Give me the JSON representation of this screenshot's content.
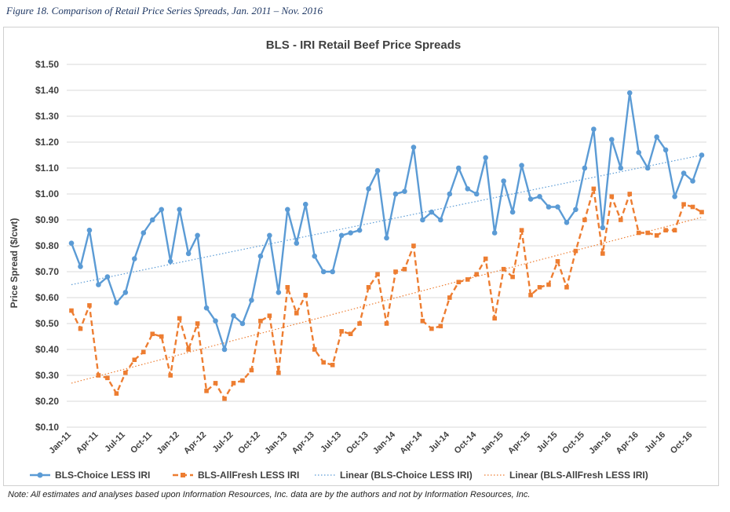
{
  "figure_caption": "Figure 18. Comparison of Retail Price Series Spreads, Jan. 2011 – Nov. 2016",
  "note": "Note: All estimates and analyses based upon Information Resources, Inc. data are by the authors and not by Information Resources, Inc.",
  "chart_data": {
    "type": "line",
    "title": "BLS - IRI Retail Beef Price Spreads",
    "xlabel": "",
    "ylabel": "Price Spread ($/cwt)",
    "ylim": [
      0.1,
      1.5
    ],
    "y_tick_labels": [
      "$0.10",
      "$0.20",
      "$0.30",
      "$0.40",
      "$0.50",
      "$0.60",
      "$0.70",
      "$0.80",
      "$0.90",
      "$1.00",
      "$1.10",
      "$1.20",
      "$1.30",
      "$1.40",
      "$1.50"
    ],
    "x_tick_labels": [
      "Jan-11",
      "Apr-11",
      "Jul-11",
      "Oct-11",
      "Jan-12",
      "Apr-12",
      "Jul-12",
      "Oct-12",
      "Jan-13",
      "Apr-13",
      "Jul-13",
      "Oct-13",
      "Jan-14",
      "Apr-14",
      "Jul-14",
      "Oct-14",
      "Jan-15",
      "Apr-15",
      "Jul-15",
      "Oct-15",
      "Jan-16",
      "Apr-16",
      "Jul-16",
      "Oct-16"
    ],
    "grid": "horizontal",
    "legend_position": "bottom",
    "series": [
      {
        "name": "BLS-Choice LESS IRI",
        "color": "#5b9bd5",
        "values": [
          0.81,
          0.72,
          0.86,
          0.65,
          0.68,
          0.58,
          0.62,
          0.75,
          0.85,
          0.9,
          0.94,
          0.74,
          0.94,
          0.77,
          0.84,
          0.56,
          0.51,
          0.4,
          0.53,
          0.5,
          0.59,
          0.76,
          0.84,
          0.62,
          0.94,
          0.81,
          0.96,
          0.76,
          0.7,
          0.7,
          0.84,
          0.85,
          0.86,
          1.02,
          1.09,
          0.83,
          1.0,
          1.01,
          1.18,
          0.9,
          0.93,
          0.9,
          1.0,
          1.1,
          1.02,
          1.0,
          1.14,
          0.85,
          1.05,
          0.93,
          1.11,
          0.98,
          0.99,
          0.95,
          0.95,
          0.89,
          0.94,
          1.1,
          1.25,
          0.87,
          1.21,
          1.1,
          1.39,
          1.16,
          1.1,
          1.22,
          1.17,
          0.99,
          1.08,
          1.05,
          1.15
        ]
      },
      {
        "name": "BLS-AllFresh LESS IRI",
        "color": "#ed7d31",
        "values": [
          0.55,
          0.48,
          0.57,
          0.3,
          0.29,
          0.23,
          0.31,
          0.36,
          0.39,
          0.46,
          0.45,
          0.3,
          0.52,
          0.4,
          0.5,
          0.24,
          0.27,
          0.21,
          0.27,
          0.28,
          0.32,
          0.51,
          0.53,
          0.31,
          0.64,
          0.54,
          0.61,
          0.4,
          0.35,
          0.34,
          0.47,
          0.46,
          0.5,
          0.64,
          0.69,
          0.5,
          0.7,
          0.71,
          0.8,
          0.51,
          0.48,
          0.49,
          0.6,
          0.66,
          0.67,
          0.69,
          0.75,
          0.52,
          0.71,
          0.68,
          0.86,
          0.61,
          0.64,
          0.65,
          0.74,
          0.64,
          0.78,
          0.9,
          1.02,
          0.77,
          0.99,
          0.9,
          1.0,
          0.85,
          0.85,
          0.84,
          0.86,
          0.86,
          0.96,
          0.95,
          0.93
        ]
      },
      {
        "name": "Linear (BLS-Choice LESS IRI)",
        "color": "#5b9bd5",
        "style": "dotted-trendline",
        "values": [
          0.65,
          1.15
        ]
      },
      {
        "name": "Linear (BLS-AllFresh LESS IRI)",
        "color": "#ed7d31",
        "style": "dotted-trendline",
        "values": [
          0.27,
          0.91
        ]
      }
    ]
  }
}
